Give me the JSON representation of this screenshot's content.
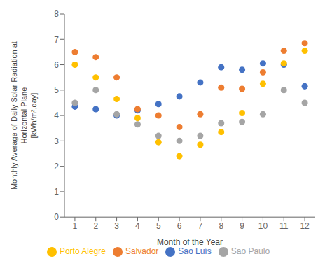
{
  "chart_data": {
    "type": "scatter",
    "xlabel": "Month of the Year",
    "ylabel": "Monthly Average of Daily Solar Radiation at\nHorizontal Plane\n[kWh/m².day]",
    "x": [
      1,
      2,
      3,
      4,
      5,
      6,
      7,
      8,
      9,
      10,
      11,
      12
    ],
    "series": [
      {
        "name": "São Luís",
        "color": "#4472C4",
        "values": [
          4.35,
          4.25,
          4.0,
          4.2,
          4.45,
          4.75,
          5.3,
          5.9,
          5.8,
          6.05,
          6.0,
          5.15
        ]
      },
      {
        "name": "Salvador",
        "color": "#ED7D31",
        "values": [
          6.5,
          6.3,
          5.5,
          4.25,
          4.0,
          3.55,
          4.05,
          5.1,
          5.05,
          5.7,
          6.55,
          6.85
        ]
      },
      {
        "name": "São Paulo",
        "color": "#A5A5A5",
        "values": [
          4.5,
          5.0,
          4.05,
          3.65,
          3.2,
          3.0,
          3.2,
          3.7,
          3.75,
          4.05,
          5.0,
          4.5
        ]
      },
      {
        "name": "Porto Alegre",
        "color": "#FFC000",
        "values": [
          6.0,
          5.5,
          4.65,
          3.9,
          2.95,
          2.4,
          2.85,
          3.35,
          4.1,
          5.25,
          6.05,
          6.55
        ]
      }
    ],
    "xlim": [
      0.5,
      12.5
    ],
    "xticks": [
      1,
      2,
      3,
      4,
      5,
      6,
      7,
      8,
      9,
      10,
      11,
      12
    ],
    "ylim": [
      0,
      8
    ],
    "yticks": [
      0,
      1,
      2,
      3,
      4,
      5,
      6,
      7,
      8
    ],
    "grid": false,
    "legend": "bottom"
  }
}
